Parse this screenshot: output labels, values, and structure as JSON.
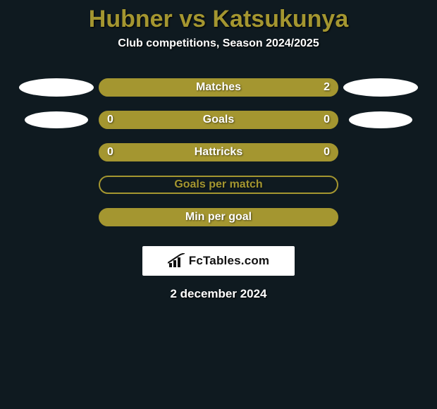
{
  "background_color": "#0f1a20",
  "title": {
    "player1": "Hubner",
    "vs": "vs",
    "player2": "Katsukunya",
    "color": "#a49630",
    "fontsize": 34
  },
  "subtitle": {
    "text": "Club competitions, Season 2024/2025",
    "color": "#ffffff",
    "fontsize": 16
  },
  "rows": [
    {
      "label": "Matches",
      "left": "",
      "right": "2",
      "fill": "#a49630",
      "border": "#a49630",
      "label_fontsize": 16,
      "value_fontsize": 16,
      "show_left_ellipse": true,
      "show_right_ellipse": true,
      "ellipse_size": "big"
    },
    {
      "label": "Goals",
      "left": "0",
      "right": "0",
      "fill": "#a49630",
      "border": "#a49630",
      "label_fontsize": 16,
      "value_fontsize": 16,
      "show_left_ellipse": true,
      "show_right_ellipse": true,
      "ellipse_size": "small"
    },
    {
      "label": "Hattricks",
      "left": "0",
      "right": "0",
      "fill": "#a49630",
      "border": "#a49630",
      "label_fontsize": 16,
      "value_fontsize": 16,
      "show_left_ellipse": false,
      "show_right_ellipse": false,
      "ellipse_size": "none"
    },
    {
      "label": "Goals per match",
      "left": "",
      "right": "",
      "fill": "transparent",
      "border": "#a49630",
      "label_fontsize": 16,
      "value_fontsize": 16,
      "show_left_ellipse": false,
      "show_right_ellipse": false,
      "ellipse_size": "none"
    },
    {
      "label": "Min per goal",
      "left": "",
      "right": "",
      "fill": "#a49630",
      "border": "#a49630",
      "label_fontsize": 16,
      "value_fontsize": 16,
      "show_left_ellipse": false,
      "show_right_ellipse": false,
      "ellipse_size": "none"
    }
  ],
  "logo": {
    "text": "FcTables.com",
    "icon_name": "bar-chart-icon"
  },
  "date": {
    "text": "2 december 2024",
    "color": "#ffffff",
    "fontsize": 17
  }
}
